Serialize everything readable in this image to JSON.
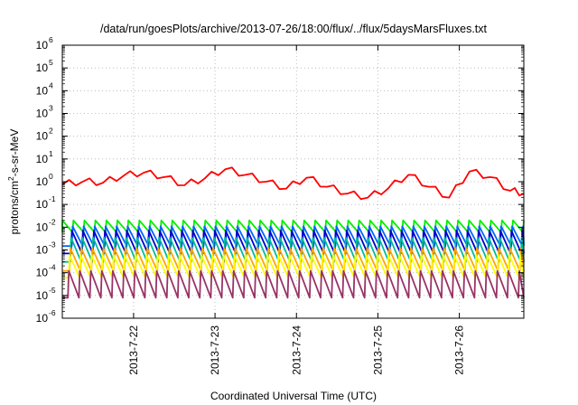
{
  "chart_data": {
    "type": "line",
    "title": "/data/run/goesPlots/archive/2013-07-26/18:00/flux/../flux/5daysMarsFluxes.txt",
    "xlabel": "Coordinated Universal Time (UTC)",
    "ylabel": "protons/cm²-s-sr-MeV",
    "ylabel_parts": {
      "base": "protons/cm",
      "sup": "2",
      "rest": "-s-sr-MeV"
    },
    "x_ticks": [
      "2013-7-22",
      "2013-7-23",
      "2013-7-24",
      "2013-7-25",
      "2013-7-26"
    ],
    "x_range_days": [
      "2013-07-21T03:00",
      "2013-07-26T19:00"
    ],
    "y_scale": "log",
    "y_ticks": [
      {
        "base": "10",
        "exp": "-6"
      },
      {
        "base": "10",
        "exp": "-5"
      },
      {
        "base": "10",
        "exp": "-4"
      },
      {
        "base": "10",
        "exp": "-3"
      },
      {
        "base": "10",
        "exp": "-2"
      },
      {
        "base": "10",
        "exp": "-1"
      },
      {
        "base": "10",
        "exp": "0"
      },
      {
        "base": "10",
        "exp": "1"
      },
      {
        "base": "10",
        "exp": "2"
      },
      {
        "base": "10",
        "exp": "3"
      },
      {
        "base": "10",
        "exp": "4"
      },
      {
        "base": "10",
        "exp": "5"
      },
      {
        "base": "10",
        "exp": "6"
      }
    ],
    "ylim": [
      1e-06,
      1000000.0
    ],
    "grid": true,
    "legend": "none",
    "series": [
      {
        "color": "#ff0000",
        "style": "red-envelope",
        "x": [
          "2013-07-21T03:00",
          "2013-07-21T09:00",
          "2013-07-21T15:00",
          "2013-07-21T21:00",
          "2013-07-22T03:00",
          "2013-07-22T09:00",
          "2013-07-22T15:00",
          "2013-07-22T21:00",
          "2013-07-23T03:00",
          "2013-07-23T09:00",
          "2013-07-23T15:00",
          "2013-07-23T21:00",
          "2013-07-24T03:00",
          "2013-07-24T09:00",
          "2013-07-24T15:00",
          "2013-07-24T21:00",
          "2013-07-25T03:00",
          "2013-07-25T09:00",
          "2013-07-25T15:00",
          "2013-07-25T21:00",
          "2013-07-26T03:00",
          "2013-07-26T09:00",
          "2013-07-26T15:00",
          "2013-07-26T19:00"
        ],
        "y": [
          0.75,
          1.0,
          0.9,
          1.8,
          2.5,
          1.6,
          0.7,
          1.4,
          3.5,
          2.0,
          1.0,
          0.5,
          1.5,
          0.6,
          0.3,
          0.2,
          0.5,
          2.0,
          0.6,
          0.2,
          2.8,
          1.6,
          0.4,
          0.3
        ]
      },
      {
        "color": "#00ee00",
        "style": "periodic",
        "base": 0.006,
        "peak": 0.02
      },
      {
        "color": "#0066ff",
        "style": "periodic",
        "base": 0.0015,
        "peak": 0.011
      },
      {
        "color": "#0000cc",
        "style": "periodic",
        "base": 0.0007,
        "peak": 0.007
      },
      {
        "color": "#00bb99",
        "style": "periodic",
        "base": 0.0003,
        "peak": 0.0035
      },
      {
        "color": "#ffa500",
        "style": "periodic",
        "base": 0.00012,
        "peak": 0.0012
      },
      {
        "color": "#ffff00",
        "style": "periodic",
        "base": 6e-05,
        "peak": 0.0006
      },
      {
        "color": "#993366",
        "style": "periodic",
        "base": 8e-06,
        "peak": 0.00012
      }
    ]
  }
}
